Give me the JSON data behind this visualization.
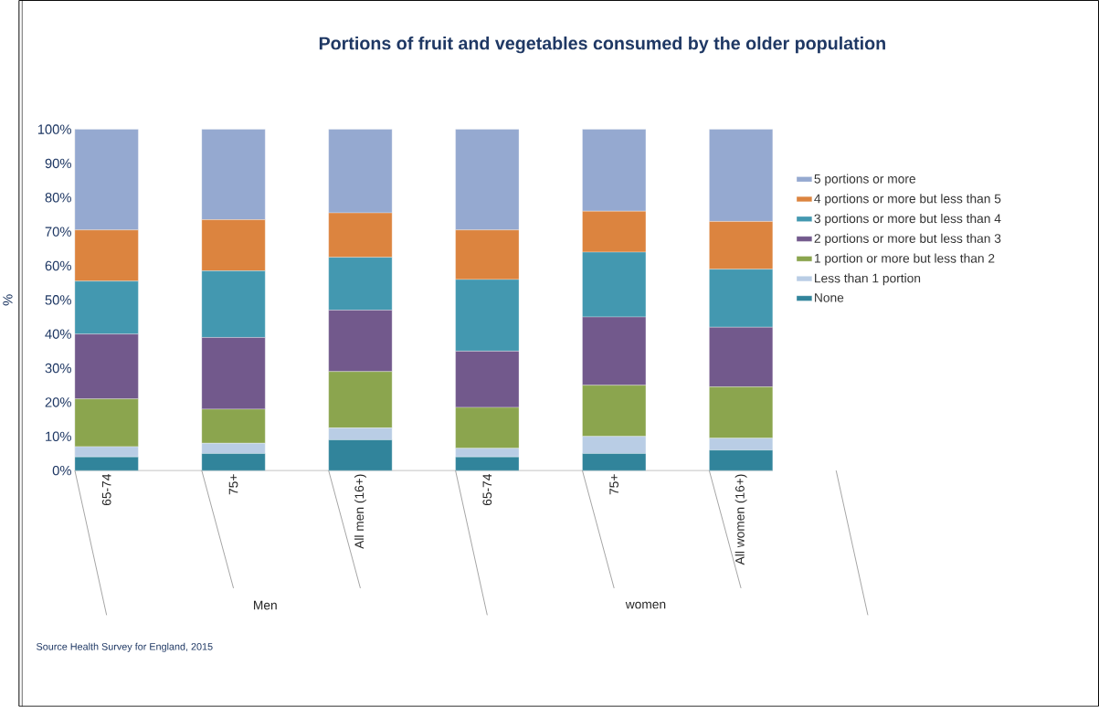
{
  "chart_data": {
    "type": "bar",
    "stacked": true,
    "title": "Portions of fruit and vegetables consumed by the older population",
    "ylabel": "%",
    "categories": [
      "65-74",
      "75+",
      "All men (16+)",
      "65-74",
      "75+",
      "All women (16+)"
    ],
    "series": [
      {
        "name": "None",
        "color": "#31849b",
        "values": [
          4,
          5,
          9,
          4,
          5,
          6
        ]
      },
      {
        "name": "Less than 1 portion",
        "color": "#b9cde5",
        "values": [
          3,
          3,
          3.5,
          2.5,
          5,
          3.5
        ]
      },
      {
        "name": "1 portion or more but less than 2",
        "color": "#8ba54e",
        "values": [
          14,
          10,
          16.5,
          12,
          15,
          15
        ]
      },
      {
        "name": "2 portions or more but less than 3",
        "color": "#72598c",
        "values": [
          19,
          21,
          18,
          16.5,
          20,
          17.5
        ]
      },
      {
        "name": "3 portions or more but less than 4",
        "color": "#4398b0",
        "values": [
          15.5,
          19.5,
          15.5,
          21,
          19,
          17
        ]
      },
      {
        "name": "4 portions or more but less than 5",
        "color": "#dc843f",
        "values": [
          15,
          15,
          13,
          14.5,
          12,
          14
        ]
      },
      {
        "name": "5 portions or more",
        "color": "#95a9d0",
        "values": [
          29.5,
          26.5,
          24.5,
          29.5,
          24,
          27
        ]
      }
    ],
    "ylim": [
      0,
      100
    ],
    "yticks": [
      {
        "value": 0,
        "label": "0%"
      },
      {
        "value": 10,
        "label": "10%"
      },
      {
        "value": 20,
        "label": "20%"
      },
      {
        "value": 30,
        "label": "30%"
      },
      {
        "value": 40,
        "label": "40%"
      },
      {
        "value": 50,
        "label": "50%"
      },
      {
        "value": 60,
        "label": "60%"
      },
      {
        "value": 70,
        "label": "70%"
      },
      {
        "value": 80,
        "label": "80%"
      },
      {
        "value": 90,
        "label": "90%"
      },
      {
        "value": 100,
        "label": "100%"
      }
    ],
    "legend": "right",
    "annotations": [
      "Men",
      "women",
      "Source Health Survey for England, 2015"
    ]
  }
}
